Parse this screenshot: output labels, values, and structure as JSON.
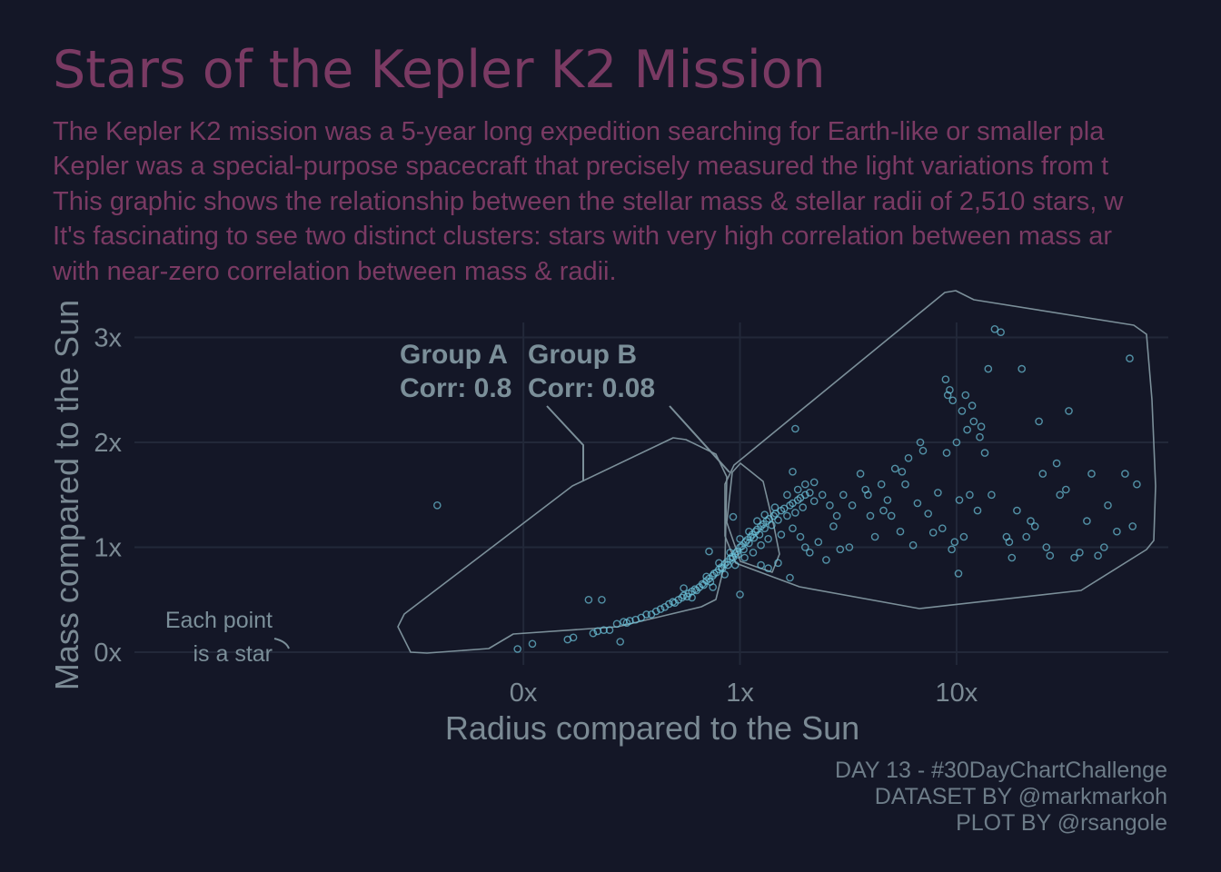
{
  "title": "Stars of the Kepler K2 Mission",
  "subtitle_lines": [
    "The Kepler K2 mission was a 5-year long expedition searching for Earth-like or smaller pla",
    "Kepler was a special-purpose spacecraft that precisely measured the light variations from t",
    "This graphic shows the relationship between the stellar mass & stellar radii of 2,510 stars, w",
    "It's fascinating to see two distinct clusters: stars with very high correlation between mass ar",
    "with near-zero correlation between mass & radii."
  ],
  "caption_lines": [
    "DAY 13 - #30DayChartChallenge",
    "DATASET BY @markmarkoh",
    "PLOT BY @rsangole"
  ],
  "colors": {
    "background": "#141727",
    "title": "#7a3a63",
    "points": "#6cc5dc",
    "annotation": "#7b8f99",
    "grid": "#222839"
  },
  "annotations": {
    "group_a_label": "Group A",
    "group_a_corr": "Corr: 0.8",
    "group_b_label": "Group B",
    "group_b_corr": "Corr: 0.08",
    "note_line1": "Each point",
    "note_line2": "is a star"
  },
  "chart_data": {
    "type": "scatter",
    "xlabel": "Radius compared to the Sun",
    "ylabel": "Mass compared to the Sun",
    "x_scale": "log",
    "xlim": [
      0.0016,
      95
    ],
    "ylim": [
      0,
      3.05
    ],
    "x_ticks": [
      {
        "value": 0.1,
        "label": "0x"
      },
      {
        "value": 1,
        "label": "1x"
      },
      {
        "value": 10,
        "label": "10x"
      }
    ],
    "y_ticks": [
      {
        "value": 0,
        "label": "0x"
      },
      {
        "value": 1,
        "label": "1x"
      },
      {
        "value": 2,
        "label": "2x"
      },
      {
        "value": 3,
        "label": "3x"
      }
    ],
    "grid": true,
    "legend": "none",
    "groups": [
      {
        "name": "Group A",
        "correlation": 0.8
      },
      {
        "name": "Group B",
        "correlation": 0.08
      }
    ],
    "points": [
      [
        0.04,
        1.4
      ],
      [
        0.094,
        0.03
      ],
      [
        0.11,
        0.08
      ],
      [
        0.16,
        0.12
      ],
      [
        0.17,
        0.14
      ],
      [
        0.2,
        0.5
      ],
      [
        0.21,
        0.18
      ],
      [
        0.22,
        0.2
      ],
      [
        0.23,
        0.5
      ],
      [
        0.235,
        0.21
      ],
      [
        0.25,
        0.21
      ],
      [
        0.27,
        0.27
      ],
      [
        0.29,
        0.29
      ],
      [
        0.3,
        0.28
      ],
      [
        0.31,
        0.3
      ],
      [
        0.33,
        0.31
      ],
      [
        0.35,
        0.33
      ],
      [
        0.37,
        0.36
      ],
      [
        0.28,
        0.1
      ],
      [
        0.39,
        0.36
      ],
      [
        0.41,
        0.39
      ],
      [
        0.43,
        0.41
      ],
      [
        0.45,
        0.43
      ],
      [
        0.47,
        0.46
      ],
      [
        0.49,
        0.48
      ],
      [
        0.5,
        0.47
      ],
      [
        0.52,
        0.5
      ],
      [
        0.54,
        0.52
      ],
      [
        0.55,
        0.54
      ],
      [
        0.57,
        0.53
      ],
      [
        0.58,
        0.56
      ],
      [
        0.6,
        0.58
      ],
      [
        0.62,
        0.6
      ],
      [
        0.63,
        0.59
      ],
      [
        0.65,
        0.62
      ],
      [
        0.67,
        0.65
      ],
      [
        0.68,
        0.64
      ],
      [
        0.7,
        0.68
      ],
      [
        0.72,
        0.7
      ],
      [
        0.73,
        0.67
      ],
      [
        0.75,
        0.73
      ],
      [
        0.76,
        0.75
      ],
      [
        0.78,
        0.76
      ],
      [
        0.8,
        0.79
      ],
      [
        0.82,
        0.81
      ],
      [
        0.83,
        0.8
      ],
      [
        0.85,
        0.84
      ],
      [
        0.87,
        0.86
      ],
      [
        0.88,
        0.83
      ],
      [
        0.9,
        0.89
      ],
      [
        0.92,
        0.91
      ],
      [
        0.93,
        0.9
      ],
      [
        0.95,
        0.94
      ],
      [
        0.97,
        0.96
      ],
      [
        0.98,
        0.93
      ],
      [
        1.0,
        1.0
      ],
      [
        1.02,
        1.01
      ],
      [
        1.04,
        0.98
      ],
      [
        1.06,
        1.05
      ],
      [
        1.08,
        1.07
      ],
      [
        1.1,
        1.04
      ],
      [
        1.12,
        1.1
      ],
      [
        1.14,
        1.12
      ],
      [
        1.16,
        1.09
      ],
      [
        1.18,
        1.15
      ],
      [
        1.2,
        1.17
      ],
      [
        1.23,
        1.12
      ],
      [
        1.25,
        1.2
      ],
      [
        1.28,
        1.22
      ],
      [
        1.3,
        1.18
      ],
      [
        1.33,
        1.25
      ],
      [
        1.36,
        1.27
      ],
      [
        1.4,
        1.21
      ],
      [
        1.43,
        1.3
      ],
      [
        1.46,
        1.32
      ],
      [
        1.5,
        1.26
      ],
      [
        1.55,
        1.35
      ],
      [
        1.6,
        1.37
      ],
      [
        1.65,
        1.3
      ],
      [
        1.7,
        1.4
      ],
      [
        1.75,
        1.42
      ],
      [
        1.8,
        1.33
      ],
      [
        1.85,
        1.45
      ],
      [
        1.9,
        1.47
      ],
      [
        1.95,
        1.38
      ],
      [
        2.0,
        1.5
      ],
      [
        2.1,
        1.52
      ],
      [
        2.2,
        1.44
      ],
      [
        0.55,
        0.61
      ],
      [
        0.6,
        0.52
      ],
      [
        0.7,
        0.72
      ],
      [
        0.75,
        0.62
      ],
      [
        0.8,
        0.85
      ],
      [
        0.85,
        0.74
      ],
      [
        0.9,
        0.95
      ],
      [
        0.95,
        0.83
      ],
      [
        1.0,
        1.08
      ],
      [
        1.05,
        0.9
      ],
      [
        1.1,
        1.15
      ],
      [
        1.15,
        0.95
      ],
      [
        1.2,
        1.25
      ],
      [
        1.25,
        1.02
      ],
      [
        1.3,
        1.31
      ],
      [
        1.35,
        1.08
      ],
      [
        1.45,
        1.38
      ],
      [
        1.55,
        1.12
      ],
      [
        1.65,
        1.5
      ],
      [
        1.75,
        1.18
      ],
      [
        1.85,
        1.55
      ],
      [
        2.0,
        1.6
      ],
      [
        2.2,
        1.62
      ],
      [
        2.4,
        1.5
      ],
      [
        0.72,
        0.96
      ],
      [
        0.93,
        1.29
      ],
      [
        1.25,
        0.83
      ],
      [
        1.35,
        0.8
      ],
      [
        1.5,
        0.85
      ],
      [
        1.7,
        0.71
      ],
      [
        1.75,
        1.72
      ],
      [
        1.9,
        1.1
      ],
      [
        2.0,
        1.0
      ],
      [
        2.1,
        0.95
      ],
      [
        2.5,
        0.88
      ],
      [
        2.6,
        1.4
      ],
      [
        2.7,
        1.2
      ],
      [
        2.8,
        1.3
      ],
      [
        3.0,
        1.5
      ],
      [
        3.2,
        1.0
      ],
      [
        1.0,
        0.55
      ],
      [
        1.8,
        2.13
      ],
      [
        2.3,
        1.05
      ],
      [
        2.9,
        0.98
      ],
      [
        3.3,
        1.4
      ],
      [
        3.6,
        1.7
      ],
      [
        3.8,
        1.55
      ],
      [
        4.0,
        1.3
      ],
      [
        4.2,
        1.1
      ],
      [
        4.5,
        1.6
      ],
      [
        4.8,
        1.45
      ],
      [
        5.0,
        1.3
      ],
      [
        5.2,
        1.75
      ],
      [
        5.5,
        1.15
      ],
      [
        5.8,
        1.6
      ],
      [
        6.0,
        1.85
      ],
      [
        6.3,
        1.02
      ],
      [
        6.6,
        1.42
      ],
      [
        7.0,
        1.92
      ],
      [
        7.4,
        1.32
      ],
      [
        7.8,
        1.14
      ],
      [
        8.2,
        1.52
      ],
      [
        8.6,
        1.18
      ],
      [
        9.0,
        1.9
      ],
      [
        9.3,
        2.5
      ],
      [
        9.6,
        2.4
      ],
      [
        10.0,
        2.0
      ],
      [
        10.3,
        1.45
      ],
      [
        10.6,
        2.3
      ],
      [
        11.0,
        2.45
      ],
      [
        11.5,
        1.5
      ],
      [
        12.0,
        2.2
      ],
      [
        12.5,
        1.35
      ],
      [
        13.0,
        2.15
      ],
      [
        13.5,
        1.9
      ],
      [
        14.0,
        2.7
      ],
      [
        15.0,
        3.08
      ],
      [
        16.0,
        3.05
      ],
      [
        17.0,
        1.1
      ],
      [
        18.0,
        0.9
      ],
      [
        19.0,
        1.35
      ],
      [
        20.0,
        2.7
      ],
      [
        21.0,
        1.1
      ],
      [
        22.0,
        1.25
      ],
      [
        24.0,
        2.2
      ],
      [
        25.0,
        1.7
      ],
      [
        26.0,
        1.0
      ],
      [
        27.0,
        0.92
      ],
      [
        29.0,
        1.8
      ],
      [
        32.0,
        1.55
      ],
      [
        33.0,
        2.3
      ],
      [
        35.0,
        0.9
      ],
      [
        40.0,
        1.25
      ],
      [
        42.0,
        1.7
      ],
      [
        45.0,
        0.92
      ],
      [
        48.0,
        1.0
      ],
      [
        50.0,
        1.4
      ],
      [
        55.0,
        1.15
      ],
      [
        60.0,
        1.7
      ],
      [
        63.0,
        2.8
      ],
      [
        65.0,
        1.2
      ],
      [
        68.0,
        1.6
      ],
      [
        10.2,
        0.75
      ],
      [
        9.8,
        1.05
      ],
      [
        8.9,
        2.6
      ],
      [
        9.1,
        2.45
      ],
      [
        11.8,
        2.35
      ],
      [
        12.8,
        2.05
      ],
      [
        11.2,
        2.12
      ],
      [
        14.5,
        1.5
      ],
      [
        9.5,
        0.98
      ],
      [
        10.8,
        1.1
      ],
      [
        17.5,
        1.05
      ],
      [
        23.0,
        1.2
      ],
      [
        30.0,
        1.5
      ],
      [
        37.0,
        0.95
      ],
      [
        6.8,
        2.0
      ],
      [
        5.6,
        1.72
      ],
      [
        4.6,
        1.35
      ],
      [
        3.9,
        1.5
      ]
    ]
  }
}
